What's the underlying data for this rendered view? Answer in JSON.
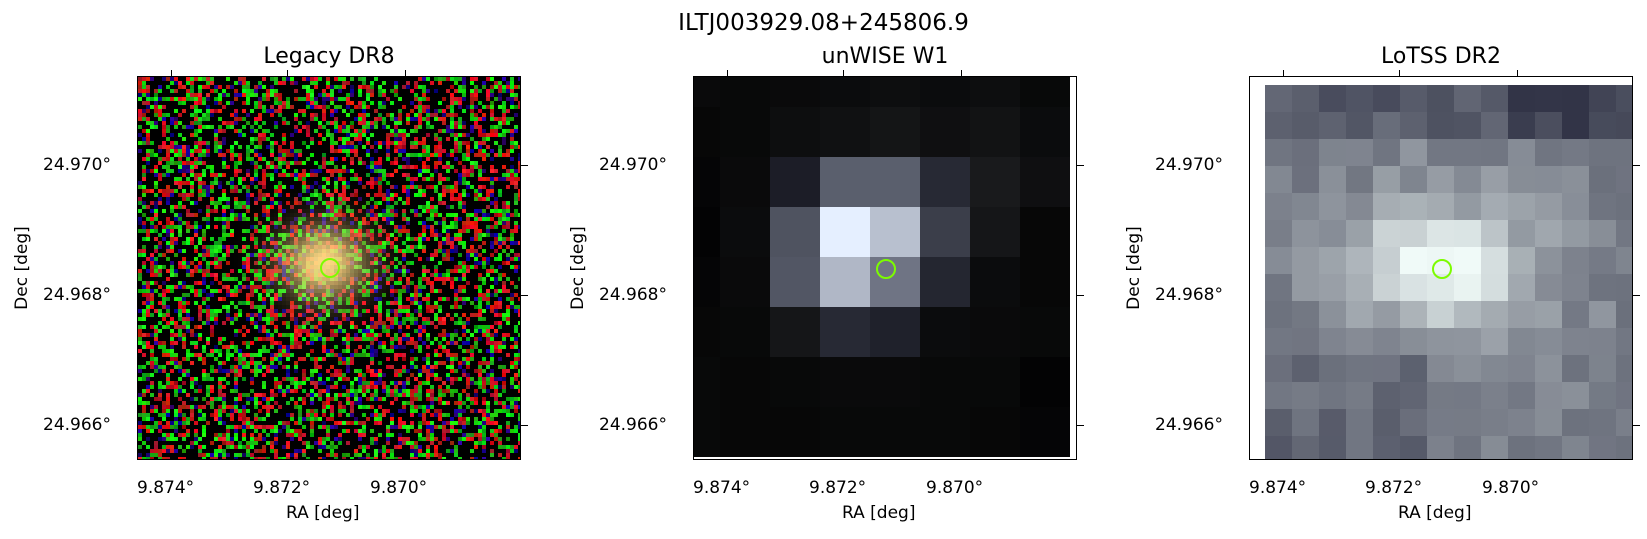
{
  "figure": {
    "title": "ILTJ003929.08+245806.9",
    "marker_color": "#7cfc00",
    "panels": [
      {
        "title": "Legacy DR8",
        "xlabel": "RA [deg]",
        "ylabel": "Dec [deg]",
        "xticks": [
          "9.874°",
          "9.872°",
          "9.870°"
        ],
        "yticks": [
          "24.970°",
          "24.968°",
          "24.966°"
        ]
      },
      {
        "title": "unWISE W1",
        "xlabel": "RA [deg]",
        "ylabel": "Dec [deg]",
        "xticks": [
          "9.874°",
          "9.872°",
          "9.870°"
        ],
        "yticks": [
          "24.970°",
          "24.968°",
          "24.966°"
        ]
      },
      {
        "title": "LoTSS DR2",
        "xlabel": "RA [deg]",
        "ylabel": "Dec [deg]",
        "xticks": [
          "9.874°",
          "9.872°",
          "9.870°"
        ],
        "yticks": [
          "24.970°",
          "24.968°",
          "24.966°"
        ]
      }
    ]
  }
}
